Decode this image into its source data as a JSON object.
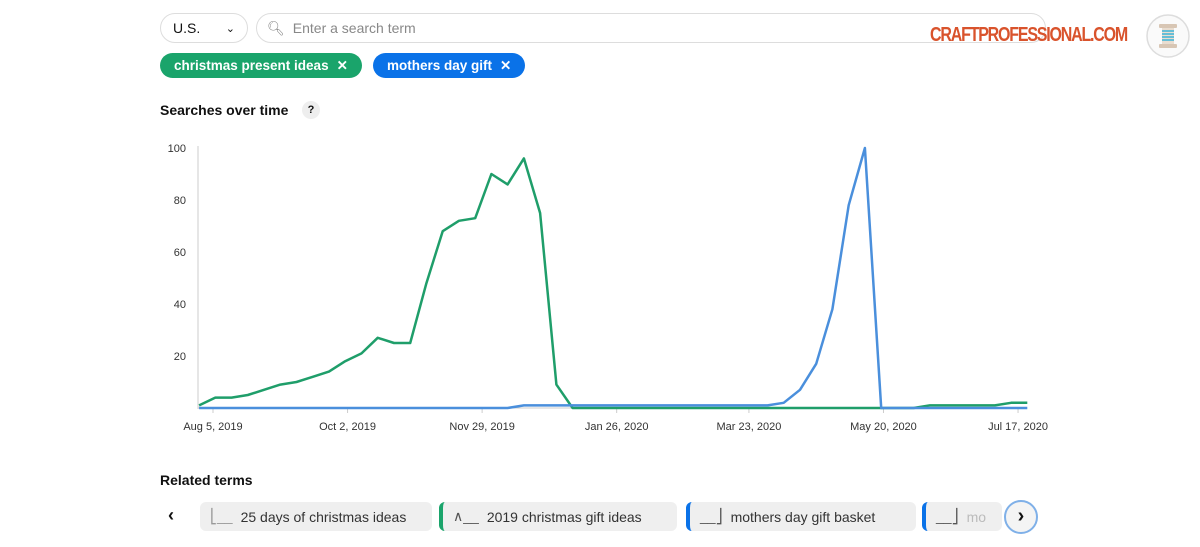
{
  "filters": {
    "region": "U.S.",
    "search_placeholder": "Enter a search term"
  },
  "chips": [
    {
      "label": "christmas present ideas",
      "color": "#1aa46b"
    },
    {
      "label": "mothers day gift",
      "color": "#0a72e8"
    }
  ],
  "section_title": "Searches over time",
  "help": "?",
  "logo": "CRAFTPROFESSIONAL.COM",
  "related": {
    "title": "Related terms",
    "items": [
      "25 days of christmas ideas",
      "2019 christmas gift ideas",
      "mothers day gift basket",
      "mo"
    ]
  },
  "chart_data": {
    "type": "line",
    "ylim": [
      0,
      100
    ],
    "yticks": [
      "20",
      "40",
      "60",
      "80",
      "100"
    ],
    "xticks": [
      "Aug 5, 2019",
      "Oct 2, 2019",
      "Nov 29, 2019",
      "Jan 26, 2020",
      "Mar 23, 2020",
      "May 20, 2020",
      "Jul 17, 2020"
    ],
    "x": [
      "2019-07-30",
      "2019-08-06",
      "2019-08-13",
      "2019-08-20",
      "2019-08-27",
      "2019-09-03",
      "2019-09-10",
      "2019-09-17",
      "2019-09-24",
      "2019-10-01",
      "2019-10-08",
      "2019-10-15",
      "2019-10-22",
      "2019-10-29",
      "2019-11-05",
      "2019-11-12",
      "2019-11-19",
      "2019-11-26",
      "2019-12-03",
      "2019-12-10",
      "2019-12-17",
      "2019-12-24",
      "2019-12-31",
      "2020-01-07",
      "2020-01-14",
      "2020-01-21",
      "2020-01-28",
      "2020-02-04",
      "2020-02-11",
      "2020-02-18",
      "2020-02-25",
      "2020-03-03",
      "2020-03-10",
      "2020-03-17",
      "2020-03-24",
      "2020-03-31",
      "2020-04-07",
      "2020-04-14",
      "2020-04-21",
      "2020-04-28",
      "2020-05-05",
      "2020-05-12",
      "2020-05-19",
      "2020-05-26",
      "2020-06-02",
      "2020-06-09",
      "2020-06-16",
      "2020-06-23",
      "2020-06-30",
      "2020-07-07",
      "2020-07-14",
      "2020-07-21"
    ],
    "series": [
      {
        "name": "christmas present ideas",
        "color": "#1f9e6a",
        "values": [
          1,
          4,
          4,
          5,
          7,
          9,
          10,
          12,
          14,
          18,
          21,
          27,
          25,
          25,
          48,
          68,
          72,
          73,
          90,
          86,
          96,
          75,
          9,
          0,
          0,
          0,
          0,
          0,
          0,
          0,
          0,
          0,
          0,
          0,
          0,
          0,
          0,
          0,
          0,
          0,
          0,
          0,
          0,
          0,
          0,
          1,
          1,
          1,
          1,
          1,
          2,
          2
        ]
      },
      {
        "name": "mothers day gift",
        "color": "#4a8fdc",
        "values": [
          0,
          0,
          0,
          0,
          0,
          0,
          0,
          0,
          0,
          0,
          0,
          0,
          0,
          0,
          0,
          0,
          0,
          0,
          0,
          0,
          1,
          1,
          1,
          1,
          1,
          1,
          1,
          1,
          1,
          1,
          1,
          1,
          1,
          1,
          1,
          1,
          2,
          7,
          17,
          38,
          78,
          100,
          0,
          0,
          0,
          0,
          0,
          0,
          0,
          0,
          0,
          0
        ]
      }
    ]
  }
}
